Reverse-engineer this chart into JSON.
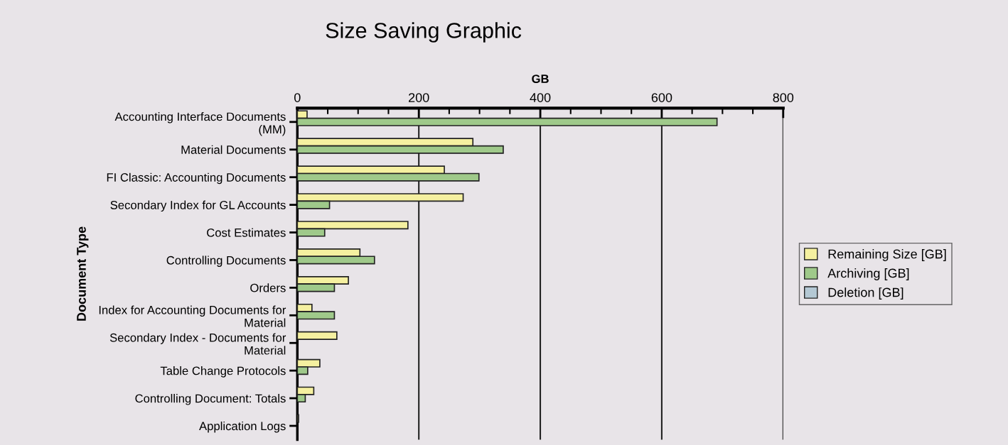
{
  "chart_data": {
    "type": "bar",
    "orientation": "horizontal",
    "title": "Size Saving Graphic",
    "xlabel": "GB",
    "ylabel": "Document Type",
    "categories": [
      "Accounting Interface Documents\n(MM)",
      "Material Documents",
      "FI Classic: Accounting Documents",
      "Secondary Index for GL Accounts",
      "Cost Estimates",
      "Controlling Documents",
      "Orders",
      "Index for Accounting Documents for\nMaterial",
      "Secondary Index - Documents for\nMaterial",
      "Table Change Protocols",
      "Controlling Document: Totals",
      "Application Logs"
    ],
    "series": [
      {
        "name": "Remaining Size [GB]",
        "color": "#f5f0a0",
        "values": [
          16,
          289,
          242,
          273,
          182,
          103,
          84,
          24,
          65,
          37,
          27,
          2
        ]
      },
      {
        "name": "Archiving [GB]",
        "color": "#9fc98a",
        "values": [
          691,
          339,
          299,
          53,
          45,
          127,
          61,
          61,
          null,
          17,
          13,
          null
        ]
      },
      {
        "name": "Deletion [GB]",
        "color": "#b4c8d4",
        "values": [
          null,
          null,
          null,
          null,
          null,
          null,
          null,
          null,
          null,
          null,
          null,
          null
        ]
      }
    ],
    "xlim": [
      0,
      800
    ],
    "xticks": [
      0,
      {
        "value": 50,
        "label": null
      },
      {
        "value": 100,
        "label": null
      },
      {
        "value": 150,
        "label": null
      },
      200,
      {
        "value": 250,
        "label": null
      },
      {
        "value": 300,
        "label": null
      },
      {
        "value": 350,
        "label": null
      },
      400,
      {
        "value": 450,
        "label": null
      },
      {
        "value": 500,
        "label": null
      },
      {
        "value": 550,
        "label": null
      },
      600,
      {
        "value": 650,
        "label": null
      },
      {
        "value": 700,
        "label": null
      },
      {
        "value": 750,
        "label": null
      },
      800
    ],
    "grid": "x",
    "legend": "right"
  }
}
